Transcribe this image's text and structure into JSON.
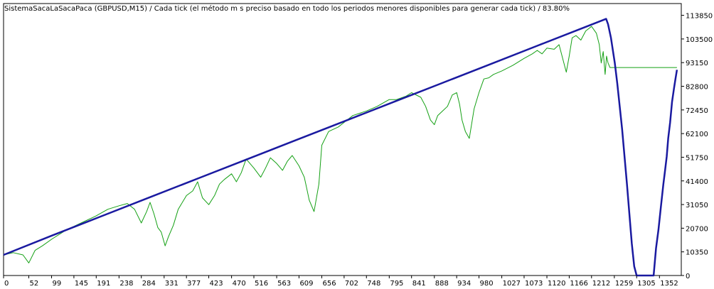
{
  "chart_data": {
    "type": "line",
    "title": "SistemaSacaLaSacaPaca (GBPUSD,M15) / Cada tick (el método m s preciso basado en todo los periodos menores disponibles para generar cada tick)  / 83.80%",
    "xlabel": "",
    "ylabel": "",
    "xlim": [
      0,
      1397
    ],
    "ylim": [
      0,
      119000
    ],
    "x_ticks": [
      0,
      52,
      99,
      145,
      191,
      238,
      284,
      331,
      377,
      423,
      470,
      516,
      563,
      609,
      656,
      702,
      748,
      795,
      841,
      888,
      934,
      980,
      1027,
      1073,
      1120,
      1166,
      1212,
      1259,
      1305,
      1352
    ],
    "y_ticks": [
      0,
      10350,
      20700,
      31050,
      41400,
      51750,
      62100,
      72450,
      82800,
      93150,
      103500,
      113850
    ],
    "grid": false,
    "legend": "none",
    "colors": {
      "balance": "#1a1aa0",
      "equity": "#14a014",
      "axis": "#000000",
      "background": "#ffffff"
    },
    "series": [
      {
        "role": "balance",
        "x": [
          0,
          100,
          200,
          300,
          400,
          500,
          600,
          700,
          800,
          900,
          1000,
          1100,
          1200,
          1242,
          1246,
          1252,
          1260,
          1265,
          1270,
          1275,
          1280,
          1285,
          1290,
          1295,
          1300,
          1305,
          1340,
          1345,
          1350,
          1355,
          1360,
          1363,
          1367,
          1370,
          1374,
          1378,
          1382,
          1385,
          1388
        ],
        "y": [
          9000,
          17500,
          25800,
          34100,
          42400,
          50700,
          59000,
          67300,
          75600,
          83900,
          92200,
          100500,
          108800,
          112300,
          110000,
          104000,
          93000,
          84000,
          74000,
          64000,
          52000,
          40000,
          27000,
          14000,
          4000,
          0,
          0,
          12000,
          20000,
          30000,
          40000,
          45000,
          52000,
          60000,
          67000,
          76000,
          82000,
          86000,
          90000
        ]
      },
      {
        "role": "equity",
        "x": [
          0,
          20,
          40,
          52,
          65,
          80,
          100,
          130,
          160,
          190,
          215,
          238,
          255,
          270,
          284,
          295,
          302,
          310,
          318,
          325,
          333,
          340,
          350,
          360,
          377,
          390,
          400,
          410,
          423,
          435,
          445,
          455,
          470,
          480,
          490,
          500,
          516,
          530,
          540,
          550,
          563,
          575,
          585,
          595,
          609,
          620,
          625,
          630,
          640,
          650,
          656,
          670,
          690,
          702,
          720,
          748,
          770,
          795,
          810,
          830,
          841,
          860,
          870,
          880,
          888,
          895,
          905,
          915,
          925,
          934,
          940,
          945,
          952,
          960,
          970,
          980,
          990,
          1000,
          1010,
          1027,
          1050,
          1073,
          1090,
          1100,
          1110,
          1120,
          1135,
          1145,
          1150,
          1155,
          1160,
          1166,
          1172,
          1180,
          1190,
          1200,
          1212,
          1222,
          1228,
          1232,
          1236,
          1240,
          1243,
          1246,
          1250,
          1380,
          1388
        ],
        "y": [
          9000,
          10000,
          9000,
          5500,
          11000,
          13000,
          16000,
          20000,
          23000,
          26000,
          29000,
          30500,
          31500,
          29000,
          23000,
          28000,
          32000,
          27000,
          21000,
          19000,
          13000,
          17000,
          22000,
          29000,
          35000,
          37000,
          41000,
          34000,
          31000,
          35000,
          40000,
          42000,
          44500,
          41000,
          45000,
          51000,
          47000,
          43000,
          47000,
          51500,
          49000,
          46000,
          50000,
          52500,
          48000,
          43000,
          38000,
          33000,
          28000,
          40000,
          57000,
          63000,
          65000,
          67000,
          70000,
          72000,
          74000,
          77000,
          77000,
          78500,
          80000,
          78000,
          74000,
          68000,
          66000,
          70000,
          72000,
          74000,
          79000,
          80000,
          75000,
          68000,
          63000,
          60000,
          73000,
          80000,
          86000,
          86500,
          88000,
          89500,
          92000,
          95000,
          97000,
          98500,
          97000,
          99500,
          99000,
          101000,
          97000,
          93000,
          89000,
          96000,
          104000,
          105000,
          103000,
          107000,
          109000,
          106000,
          101000,
          93000,
          98000,
          88000,
          96000,
          93000,
          91000,
          91000,
          91000
        ]
      }
    ]
  }
}
